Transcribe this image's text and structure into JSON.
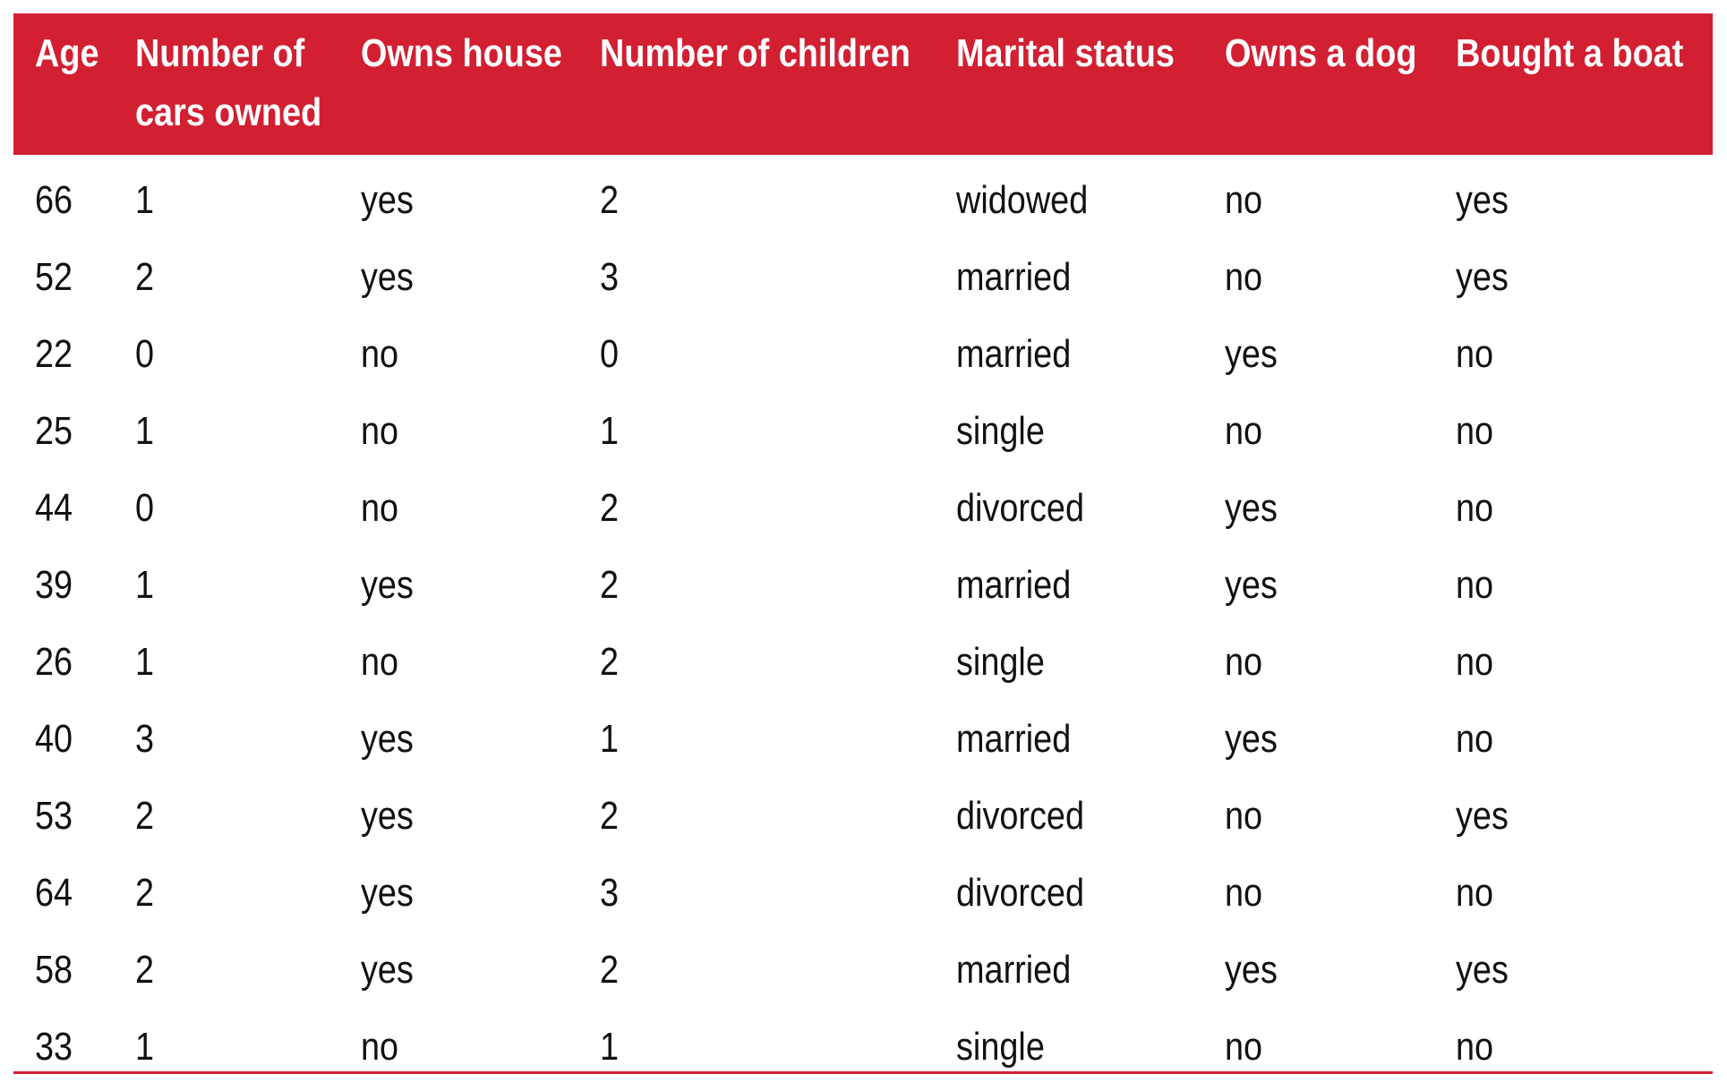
{
  "table": {
    "headers": [
      [
        "Age"
      ],
      [
        "Number of",
        "cars owned"
      ],
      [
        "Owns house"
      ],
      [
        "Number of children"
      ],
      [
        "Marital status"
      ],
      [
        "Owns a dog"
      ],
      [
        "Bought a boat"
      ]
    ],
    "rows": [
      [
        "66",
        "1",
        "yes",
        "2",
        "widowed",
        "no",
        "yes"
      ],
      [
        "52",
        "2",
        "yes",
        "3",
        "married",
        "no",
        "yes"
      ],
      [
        "22",
        "0",
        "no",
        "0",
        "married",
        "yes",
        "no"
      ],
      [
        "25",
        "1",
        "no",
        "1",
        "single",
        "no",
        "no"
      ],
      [
        "44",
        "0",
        "no",
        "2",
        "divorced",
        "yes",
        "no"
      ],
      [
        "39",
        "1",
        "yes",
        "2",
        "married",
        "yes",
        "no"
      ],
      [
        "26",
        "1",
        "no",
        "2",
        "single",
        "no",
        "no"
      ],
      [
        "40",
        "3",
        "yes",
        "1",
        "married",
        "yes",
        "no"
      ],
      [
        "53",
        "2",
        "yes",
        "2",
        "divorced",
        "no",
        "yes"
      ],
      [
        "64",
        "2",
        "yes",
        "3",
        "divorced",
        "no",
        "no"
      ],
      [
        "58",
        "2",
        "yes",
        "2",
        "married",
        "yes",
        "yes"
      ],
      [
        "33",
        "1",
        "no",
        "1",
        "single",
        "no",
        "no"
      ]
    ]
  },
  "colors": {
    "header_bg": "#d21f32",
    "header_text": "#ffffff",
    "body_text": "#111111",
    "rule": "#d21f32"
  }
}
